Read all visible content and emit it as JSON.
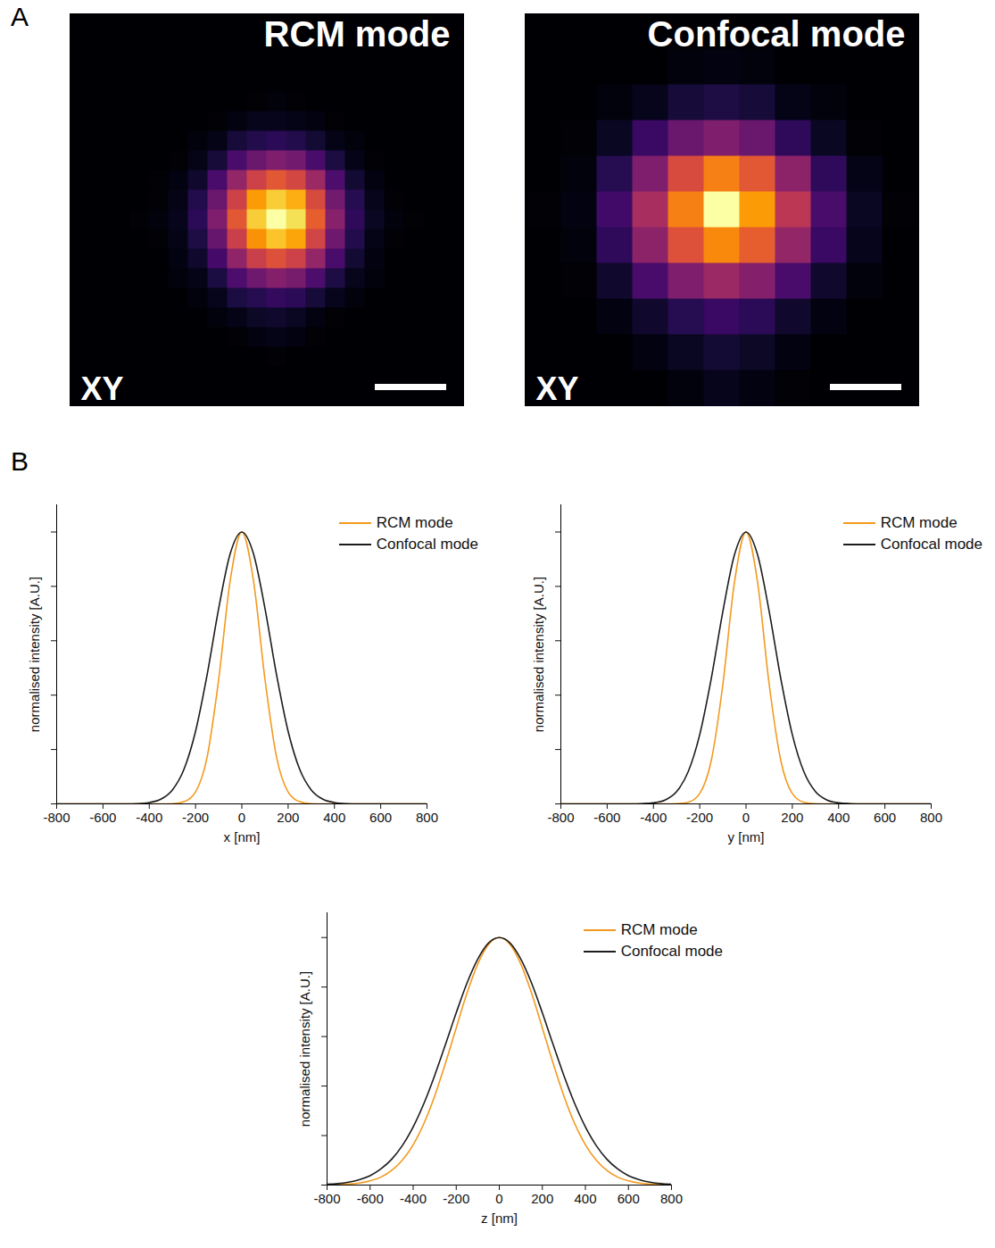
{
  "chart_data": [
    {
      "type": "heatmap",
      "panel": "A",
      "title": "RCM mode",
      "annotation": "XY",
      "tick_labels": false,
      "zlim": [
        0,
        100
      ],
      "cells": [
        [
          0,
          0,
          0,
          0,
          0,
          0,
          0,
          0,
          0,
          0,
          0,
          0,
          0,
          0,
          0,
          0,
          0,
          0,
          0,
          0
        ],
        [
          0,
          0,
          0,
          0,
          0,
          0,
          0,
          0,
          0,
          0,
          0,
          0,
          0,
          0,
          0,
          0,
          0,
          0,
          0,
          0
        ],
        [
          0,
          0,
          0,
          0,
          0,
          0,
          0,
          0,
          0,
          0,
          0,
          0,
          0,
          0,
          0,
          0,
          0,
          0,
          0,
          0
        ],
        [
          0,
          0,
          0,
          0,
          0,
          0,
          0,
          0,
          0,
          0,
          0,
          0,
          0,
          0,
          0,
          0,
          0,
          0,
          0,
          0
        ],
        [
          0,
          0,
          0,
          0,
          0,
          0,
          0,
          0,
          0,
          1,
          2,
          1,
          0,
          0,
          0,
          0,
          0,
          0,
          0,
          0
        ],
        [
          0,
          0,
          0,
          0,
          0,
          0,
          0,
          1,
          3,
          5,
          5,
          4,
          3,
          1,
          0,
          0,
          0,
          0,
          0,
          0
        ],
        [
          0,
          0,
          0,
          0,
          0,
          0,
          2,
          4,
          10,
          13,
          15,
          13,
          9,
          4,
          2,
          0,
          0,
          0,
          0,
          0
        ],
        [
          0,
          0,
          0,
          0,
          0,
          1,
          4,
          10,
          22,
          30,
          35,
          32,
          22,
          11,
          4,
          1,
          0,
          0,
          0,
          0
        ],
        [
          0,
          0,
          0,
          0,
          1,
          3,
          8,
          22,
          40,
          55,
          62,
          57,
          42,
          23,
          9,
          3,
          0,
          0,
          0,
          0
        ],
        [
          0,
          0,
          0,
          0,
          1,
          4,
          13,
          30,
          55,
          78,
          88,
          82,
          58,
          32,
          14,
          5,
          1,
          0,
          0,
          0
        ],
        [
          0,
          0,
          0,
          1,
          2,
          5,
          15,
          35,
          62,
          88,
          100,
          92,
          64,
          37,
          16,
          6,
          2,
          1,
          0,
          0
        ],
        [
          0,
          0,
          0,
          0,
          1,
          4,
          12,
          29,
          54,
          76,
          86,
          80,
          56,
          31,
          13,
          4,
          1,
          0,
          0,
          0
        ],
        [
          0,
          0,
          0,
          0,
          0,
          3,
          8,
          21,
          39,
          54,
          60,
          55,
          40,
          22,
          9,
          3,
          0,
          0,
          0,
          0
        ],
        [
          0,
          0,
          0,
          0,
          0,
          2,
          4,
          11,
          23,
          31,
          36,
          33,
          23,
          12,
          5,
          2,
          0,
          0,
          0,
          0
        ],
        [
          0,
          0,
          0,
          0,
          0,
          0,
          2,
          5,
          11,
          14,
          17,
          15,
          10,
          5,
          2,
          0,
          0,
          0,
          0,
          0
        ],
        [
          0,
          0,
          0,
          0,
          0,
          0,
          0,
          2,
          4,
          7,
          8,
          6,
          3,
          1,
          0,
          0,
          0,
          0,
          0,
          0
        ],
        [
          0,
          0,
          0,
          0,
          0,
          0,
          0,
          0,
          1,
          3,
          4,
          3,
          1,
          0,
          0,
          0,
          0,
          0,
          0,
          0
        ],
        [
          0,
          0,
          0,
          0,
          0,
          0,
          0,
          0,
          0,
          0,
          1,
          0,
          0,
          0,
          0,
          0,
          0,
          0,
          0,
          0
        ],
        [
          0,
          0,
          0,
          0,
          0,
          0,
          0,
          0,
          0,
          0,
          0,
          0,
          0,
          0,
          0,
          0,
          0,
          0,
          0,
          0
        ],
        [
          0,
          0,
          0,
          0,
          0,
          0,
          0,
          0,
          0,
          0,
          0,
          0,
          0,
          0,
          0,
          0,
          0,
          0,
          0,
          0
        ]
      ]
    },
    {
      "type": "heatmap",
      "title": "Confocal mode",
      "annotation": "XY",
      "tick_labels": false,
      "zlim": [
        0,
        100
      ],
      "cells": [
        [
          0,
          0,
          0,
          0,
          0,
          0,
          0,
          0,
          0,
          0,
          0
        ],
        [
          0,
          0,
          0,
          0,
          2,
          3,
          2,
          0,
          0,
          0,
          0
        ],
        [
          0,
          0,
          2,
          5,
          10,
          12,
          10,
          4,
          2,
          0,
          0
        ],
        [
          0,
          1,
          6,
          18,
          30,
          35,
          30,
          16,
          6,
          1,
          0
        ],
        [
          0,
          2,
          14,
          35,
          58,
          72,
          62,
          38,
          16,
          4,
          0
        ],
        [
          1,
          3,
          20,
          45,
          72,
          100,
          78,
          50,
          22,
          6,
          1
        ],
        [
          0,
          2,
          16,
          38,
          60,
          74,
          64,
          40,
          18,
          5,
          0
        ],
        [
          0,
          1,
          8,
          22,
          35,
          42,
          36,
          22,
          8,
          2,
          0
        ],
        [
          0,
          0,
          3,
          8,
          14,
          18,
          15,
          8,
          3,
          0,
          0
        ],
        [
          0,
          0,
          0,
          3,
          6,
          9,
          7,
          3,
          0,
          0,
          0
        ],
        [
          0,
          0,
          0,
          0,
          2,
          5,
          3,
          1,
          0,
          0,
          0
        ]
      ]
    },
    {
      "type": "line",
      "panel": "B",
      "xlabel": "x [nm]",
      "ylabel": "normalised intensity [A.U.]",
      "xlim": [
        -800,
        800
      ],
      "xticks": [
        -800,
        -600,
        -400,
        -200,
        0,
        200,
        400,
        600,
        800
      ],
      "ylim": [
        0,
        1.1
      ],
      "yticks": [
        0,
        0.2,
        0.4,
        0.6,
        0.8,
        1
      ],
      "tick_labels": "x",
      "legend": "top-right",
      "x": [
        -800,
        -750,
        -700,
        -650,
        -600,
        -550,
        -500,
        -450,
        -400,
        -350,
        -300,
        -250,
        -200,
        -150,
        -100,
        -50,
        0,
        50,
        100,
        150,
        200,
        250,
        300,
        350,
        400,
        450,
        500,
        550,
        600,
        650,
        700,
        750,
        800
      ],
      "series": [
        {
          "name": "RCM mode",
          "color": "#f39a1e",
          "values": [
            0,
            0,
            0,
            0,
            0,
            0,
            0,
            0,
            0,
            0,
            0.001,
            0.008,
            0.044,
            0.172,
            0.458,
            0.823,
            1,
            0.823,
            0.458,
            0.172,
            0.044,
            0.008,
            0.001,
            0,
            0,
            0,
            0,
            0,
            0,
            0,
            0,
            0,
            0
          ]
        },
        {
          "name": "Confocal mode",
          "color": "#1c1c1c",
          "values": [
            0,
            0,
            0,
            0,
            0,
            0,
            0,
            0.001,
            0.005,
            0.017,
            0.051,
            0.127,
            0.267,
            0.475,
            0.719,
            0.921,
            1,
            0.921,
            0.719,
            0.475,
            0.267,
            0.127,
            0.051,
            0.017,
            0.005,
            0.001,
            0,
            0,
            0,
            0,
            0,
            0,
            0
          ]
        }
      ]
    },
    {
      "type": "line",
      "xlabel": "y [nm]",
      "ylabel": "normalised intensity [A.U.]",
      "xlim": [
        -800,
        800
      ],
      "xticks": [
        -800,
        -600,
        -400,
        -200,
        0,
        200,
        400,
        600,
        800
      ],
      "ylim": [
        0,
        1.1
      ],
      "yticks": [
        0,
        0.2,
        0.4,
        0.6,
        0.8,
        1
      ],
      "tick_labels": "x",
      "legend": "top-right",
      "x": [
        -800,
        -750,
        -700,
        -650,
        -600,
        -550,
        -500,
        -450,
        -400,
        -350,
        -300,
        -250,
        -200,
        -150,
        -100,
        -50,
        0,
        50,
        100,
        150,
        200,
        250,
        300,
        350,
        400,
        450,
        500,
        550,
        600,
        650,
        700,
        750,
        800
      ],
      "series": [
        {
          "name": "RCM mode",
          "color": "#f39a1e",
          "values": [
            0,
            0,
            0,
            0,
            0,
            0,
            0,
            0,
            0,
            0,
            0.001,
            0.006,
            0.038,
            0.16,
            0.44,
            0.815,
            1,
            0.815,
            0.44,
            0.16,
            0.038,
            0.006,
            0.001,
            0,
            0,
            0,
            0,
            0,
            0,
            0,
            0,
            0,
            0
          ]
        },
        {
          "name": "Confocal mode",
          "color": "#1c1c1c",
          "values": [
            0,
            0,
            0,
            0,
            0,
            0,
            0,
            0.001,
            0.004,
            0.014,
            0.045,
            0.118,
            0.255,
            0.462,
            0.708,
            0.916,
            1,
            0.916,
            0.708,
            0.462,
            0.255,
            0.118,
            0.045,
            0.014,
            0.004,
            0.001,
            0,
            0,
            0,
            0,
            0,
            0,
            0
          ]
        }
      ]
    },
    {
      "type": "line",
      "xlabel": "z [nm]",
      "ylabel": "normalised intensity [A.U.]",
      "xlim": [
        -800,
        800
      ],
      "xticks": [
        -800,
        -600,
        -400,
        -200,
        0,
        200,
        400,
        600,
        800
      ],
      "ylim": [
        0,
        1.1
      ],
      "yticks": [
        0,
        0.2,
        0.4,
        0.6,
        0.8,
        1
      ],
      "tick_labels": "x",
      "legend": "top-right",
      "x": [
        -800,
        -750,
        -700,
        -650,
        -600,
        -550,
        -500,
        -450,
        -400,
        -350,
        -300,
        -250,
        -200,
        -150,
        -100,
        -50,
        0,
        50,
        100,
        150,
        200,
        250,
        300,
        350,
        400,
        450,
        500,
        550,
        600,
        650,
        700,
        750,
        800
      ],
      "series": [
        {
          "name": "RCM mode",
          "color": "#f39a1e",
          "values": [
            0.001,
            0.002,
            0.004,
            0.008,
            0.017,
            0.032,
            0.059,
            0.101,
            0.163,
            0.249,
            0.36,
            0.492,
            0.635,
            0.775,
            0.893,
            0.972,
            1,
            0.972,
            0.893,
            0.775,
            0.635,
            0.492,
            0.36,
            0.249,
            0.163,
            0.101,
            0.059,
            0.032,
            0.017,
            0.008,
            0.004,
            0.002,
            0.001
          ]
        },
        {
          "name": "Confocal mode",
          "color": "#1c1c1c",
          "values": [
            0.003,
            0.006,
            0.012,
            0.022,
            0.038,
            0.065,
            0.104,
            0.16,
            0.235,
            0.33,
            0.443,
            0.568,
            0.696,
            0.816,
            0.913,
            0.978,
            1,
            0.978,
            0.913,
            0.816,
            0.696,
            0.568,
            0.443,
            0.33,
            0.235,
            0.16,
            0.104,
            0.065,
            0.038,
            0.022,
            0.012,
            0.006,
            0.003
          ]
        }
      ]
    }
  ]
}
